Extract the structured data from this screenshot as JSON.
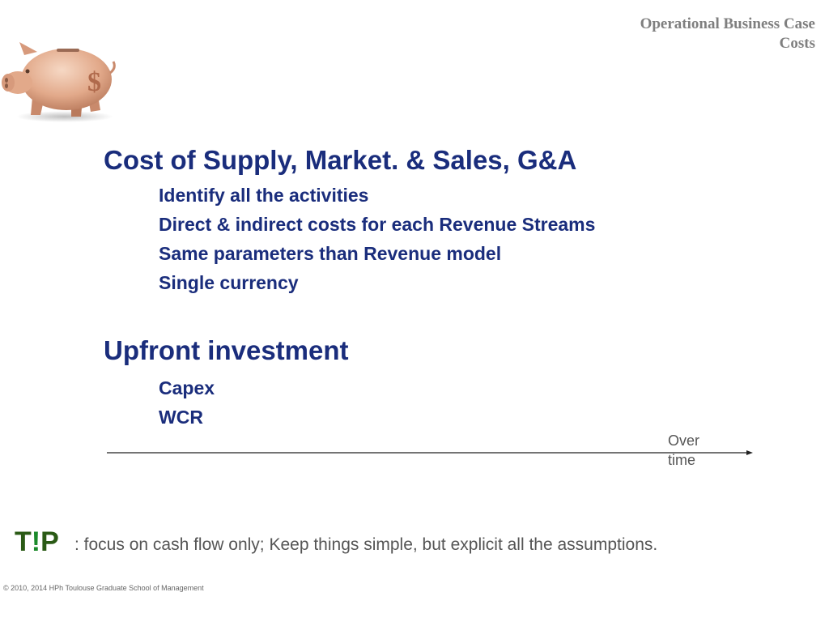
{
  "header": {
    "title_line1": "Operational Business Case",
    "title_line2": "Costs"
  },
  "illustration": {
    "icon": "piggy-bank-icon",
    "symbol": "$"
  },
  "section1": {
    "title": "Cost of Supply, Market. & Sales, G&A",
    "bullets": [
      "Identify all the activities",
      "Direct & indirect costs for each Revenue Streams",
      "Same parameters than Revenue model",
      "Single currency"
    ]
  },
  "section2": {
    "title": "Upfront investment",
    "bullets": [
      "Capex",
      "WCR"
    ]
  },
  "timeline": {
    "label": "Over time"
  },
  "tip": {
    "logo_t": "T",
    "logo_bang": "!",
    "logo_p": "P",
    "text": ": focus on cash flow only; Keep things simple, but explicit all the assumptions."
  },
  "footer": {
    "copyright": "© 2010, 2014 HPh Toulouse Graduate School of Management"
  },
  "colors": {
    "heading": "#1a2d7c",
    "tip_logo": "#2a5a15",
    "header": "#7f7f7f"
  }
}
